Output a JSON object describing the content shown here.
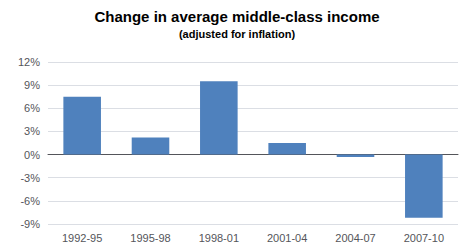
{
  "chart_data": {
    "type": "bar",
    "title": "Change in average middle-class income",
    "subtitle": "(adjusted for inflation)",
    "categories": [
      "1992-95",
      "1995-98",
      "1998-01",
      "2001-04",
      "2004-07",
      "2007-10"
    ],
    "values": [
      7.5,
      2.2,
      9.5,
      1.5,
      -0.3,
      -8.2
    ],
    "color": "#4f81bd",
    "ylim": [
      -9,
      12
    ],
    "yticks": [
      {
        "value": -9,
        "label": "-9%"
      },
      {
        "value": -6,
        "label": "-6%"
      },
      {
        "value": -3,
        "label": "-3%"
      },
      {
        "value": 0,
        "label": "0%"
      },
      {
        "value": 3,
        "label": "3%"
      },
      {
        "value": 6,
        "label": "6%"
      },
      {
        "value": 9,
        "label": "9%"
      },
      {
        "value": 12,
        "label": "12%"
      }
    ],
    "grid": true
  }
}
